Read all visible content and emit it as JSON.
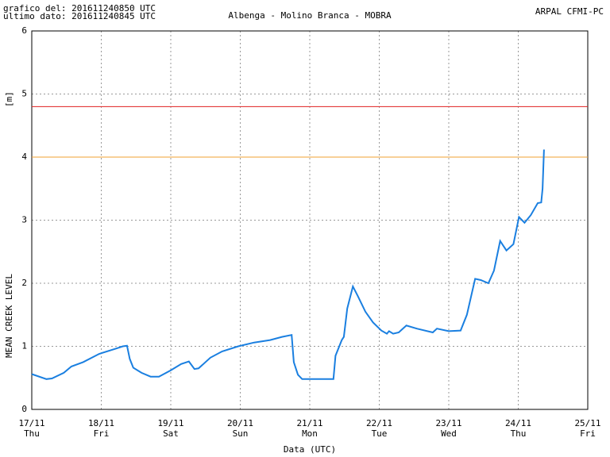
{
  "header": {
    "generated": "grafico del: 201611240850 UTC",
    "last_data": "ultimo dato: 201611240845 UTC",
    "station": "Albenga - Molino Branca - MOBRA",
    "source": "ARPAL CFMI-PC"
  },
  "chart_data": {
    "type": "line",
    "y_label": "MEAN CREEK LEVEL",
    "y_unit": "[m]",
    "x_label": "Data (UTC)",
    "xlim": [
      17,
      25
    ],
    "xticks": [
      {
        "value": 17,
        "label": "17/11"
      },
      {
        "value": 18,
        "label": "18/11"
      },
      {
        "value": 19,
        "label": "19/11"
      },
      {
        "value": 20,
        "label": "20/11"
      },
      {
        "value": 21,
        "label": "21/11"
      },
      {
        "value": 22,
        "label": "22/11"
      },
      {
        "value": 23,
        "label": "23/11"
      },
      {
        "value": 24,
        "label": "24/11"
      },
      {
        "value": 25,
        "label": "25/11"
      }
    ],
    "weekdays": [
      "Thu",
      "Fri",
      "Sat",
      "Sun",
      "Mon",
      "Tue",
      "Wed",
      "Thu",
      "Fri"
    ],
    "ylim": [
      0,
      6
    ],
    "yticks": [
      0,
      1,
      2,
      3,
      4,
      5,
      6
    ],
    "grid": true,
    "thresholds": [
      {
        "value": 4.8,
        "color": "#e02020"
      },
      {
        "value": 4,
        "color": "#f0a030"
      }
    ],
    "series": [
      {
        "color": "#1a7fe0",
        "x": [
          17,
          17.21,
          17.29,
          17.46,
          17.57,
          17.74,
          17.97,
          18.2,
          18.31,
          18.37,
          18.41,
          18.46,
          18.58,
          18.71,
          18.83,
          19,
          19.15,
          19.26,
          19.34,
          19.4,
          19.57,
          19.74,
          19.97,
          20.2,
          20.43,
          20.6,
          20.74,
          20.77,
          20.83,
          20.89,
          21.34,
          21.37,
          21.46,
          21.49,
          21.54,
          21.62,
          21.69,
          21.8,
          21.91,
          22.03,
          22.11,
          22.14,
          22.2,
          22.28,
          22.39,
          22.54,
          22.77,
          22.83,
          23,
          23.17,
          23.26,
          23.38,
          23.46,
          23.57,
          23.65,
          23.74,
          23.83,
          23.93,
          24.01,
          24.09,
          24.18,
          24.28,
          24.33,
          24.35,
          24.37
        ],
        "values": [
          0.56,
          0.48,
          0.49,
          0.58,
          0.68,
          0.75,
          0.88,
          0.96,
          1,
          1.01,
          0.8,
          0.66,
          0.58,
          0.52,
          0.52,
          0.62,
          0.72,
          0.76,
          0.64,
          0.65,
          0.82,
          0.92,
          1,
          1.06,
          1.1,
          1.15,
          1.18,
          0.75,
          0.55,
          0.48,
          0.48,
          0.85,
          1.1,
          1.15,
          1.6,
          1.95,
          1.8,
          1.55,
          1.38,
          1.25,
          1.2,
          1.24,
          1.2,
          1.22,
          1.33,
          1.28,
          1.22,
          1.28,
          1.24,
          1.25,
          1.5,
          2.07,
          2.05,
          2,
          2.2,
          2.67,
          2.52,
          2.62,
          3.05,
          2.96,
          3.08,
          3.27,
          3.28,
          3.5,
          4.12
        ]
      }
    ]
  }
}
